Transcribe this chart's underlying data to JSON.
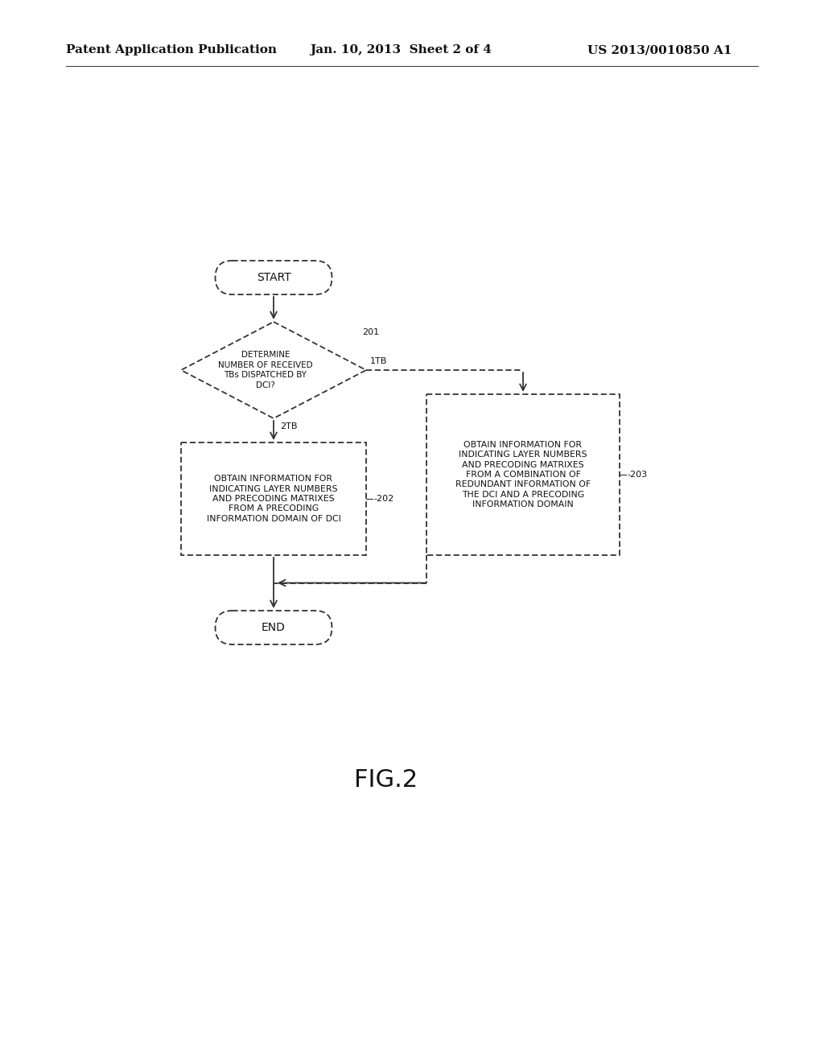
{
  "bg_color": "#ffffff",
  "header_left": "Patent Application Publication",
  "header_center": "Jan. 10, 2013  Sheet 2 of 4",
  "header_right": "US 2013/0010850 A1",
  "header_fontsize": 11,
  "figure_label": "FIG.2",
  "figure_label_fontsize": 22,
  "start_label": "START",
  "end_label": "END",
  "diamond_label": "DETERMINE\nNUMBER OF RECEIVED\nTBs DISPATCHED BY\nDCI?",
  "diamond_ref": "201",
  "box1_label": "OBTAIN INFORMATION FOR\nINDICATING LAYER NUMBERS\nAND PRECODING MATRIXES\nFROM A PRECODING\nINFORMATION DOMAIN OF DCI",
  "box1_ref": "-202",
  "box2_label": "OBTAIN INFORMATION FOR\nINDICATING LAYER NUMBERS\nAND PRECODING MATRIXES\nFROM A COMBINATION OF\nREDUNDANT INFORMATION OF\nTHE DCI AND A PRECODING\nINFORMATION DOMAIN",
  "box2_ref": "-203",
  "arrow_1tb": "1TB",
  "arrow_2tb": "2TB",
  "line_color": "#333333",
  "box_fill": "#ffffff",
  "text_color": "#111111",
  "font_size_box": 7.8,
  "font_size_terminal": 10,
  "font_size_ref": 8
}
